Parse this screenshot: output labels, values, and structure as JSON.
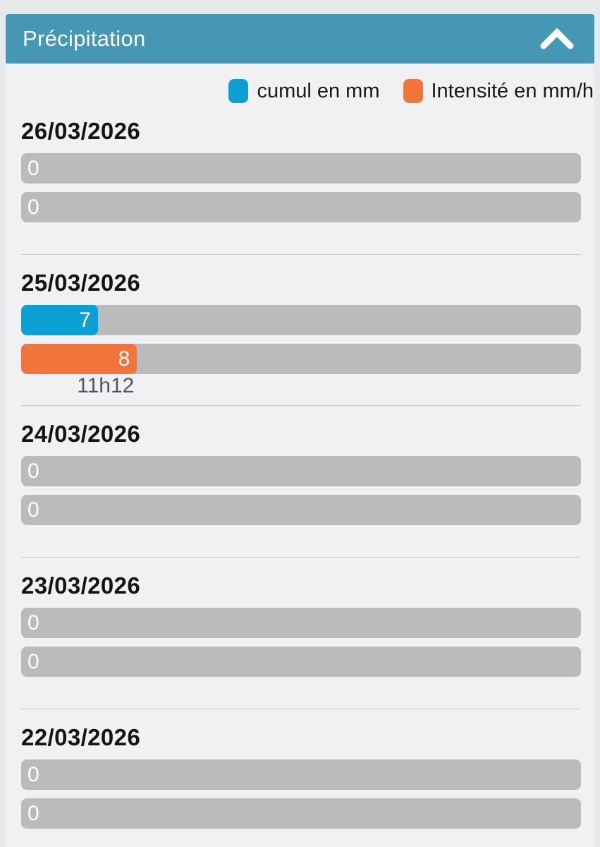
{
  "header": {
    "title": "Précipitation",
    "collapse_icon": "chevron-up",
    "background": "#4597b3"
  },
  "legend": [
    {
      "label": "cumul en mm",
      "color": "#0b9fd4"
    },
    {
      "label": "Intensité en mm/h",
      "color": "#f1743a"
    }
  ],
  "colors": {
    "cumul": "#0b9fd4",
    "intensite": "#f1743a",
    "track": "#bbbbbc",
    "panel_bg": "#f1f1f3",
    "frame_bg": "#e8e9eb",
    "header_bg": "#4597b3"
  },
  "days": [
    {
      "date": "26/03/2026",
      "cumul": {
        "label": "0",
        "percent": 0
      },
      "intensite": {
        "label": "0",
        "percent": 0
      },
      "time": null,
      "divider": true
    },
    {
      "date": "25/03/2026",
      "cumul": {
        "label": "7",
        "percent": 13.7
      },
      "intensite": {
        "label": "8",
        "percent": 20.7
      },
      "time": "11h12",
      "divider": true
    },
    {
      "date": "24/03/2026",
      "cumul": {
        "label": "0",
        "percent": 0
      },
      "intensite": {
        "label": "0",
        "percent": 0
      },
      "time": null,
      "divider": true
    },
    {
      "date": "23/03/2026",
      "cumul": {
        "label": "0",
        "percent": 0
      },
      "intensite": {
        "label": "0",
        "percent": 0
      },
      "time": null,
      "divider": true
    },
    {
      "date": "22/03/2026",
      "cumul": {
        "label": "0",
        "percent": 0
      },
      "intensite": {
        "label": "0",
        "percent": 0
      },
      "time": null,
      "divider": false
    }
  ],
  "chart_data": {
    "type": "bar",
    "title": "Précipitation",
    "categories": [
      "26/03/2026",
      "25/03/2026",
      "24/03/2026",
      "23/03/2026",
      "22/03/2026"
    ],
    "series": [
      {
        "name": "cumul en mm",
        "unit": "mm",
        "values": [
          0,
          7,
          0,
          0,
          0
        ]
      },
      {
        "name": "Intensité en mm/h",
        "unit": "mm/h",
        "values": [
          0,
          8,
          0,
          0,
          0
        ]
      }
    ],
    "annotations": [
      {
        "category": "25/03/2026",
        "series": "Intensité en mm/h",
        "label": "11h12"
      }
    ],
    "legend_position": "top-right",
    "orientation": "horizontal",
    "grid": false
  }
}
